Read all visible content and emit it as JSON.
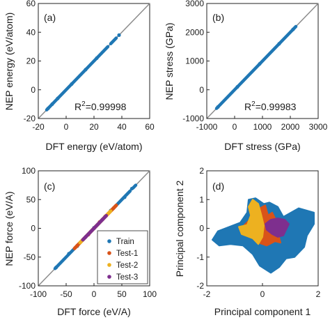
{
  "chart_data": [
    {
      "panel": "(a)",
      "type": "scatter",
      "xlabel": "DFT energy (eV/atom)",
      "ylabel": "NEP energy (eV/atom)",
      "xlim": [
        -20,
        60
      ],
      "ylim": [
        -20,
        60
      ],
      "xticks": [
        -20,
        0,
        20,
        40,
        60
      ],
      "yticks": [
        -20,
        0,
        20,
        40,
        60
      ],
      "annotation": {
        "base": "R",
        "sup": "2",
        "text": "=0.99998"
      },
      "identity_line": true,
      "series": [
        {
          "color": "#1f77b4",
          "segments": [
            [
              -14,
              30
            ],
            [
              32,
              36
            ]
          ],
          "points": [
            [
              -13,
              -13
            ],
            [
              -10,
              -10
            ],
            [
              -6,
              -6
            ],
            [
              4,
              4
            ],
            [
              14,
              14
            ],
            [
              22,
              22
            ],
            [
              38,
              38
            ]
          ]
        }
      ]
    },
    {
      "panel": "(b)",
      "type": "scatter",
      "xlabel": "DFT stress (GPa)",
      "ylabel": "NEP stress (GPa)",
      "xlim": [
        -1000,
        3000
      ],
      "ylim": [
        -1000,
        3000
      ],
      "xticks": [
        -1000,
        0,
        1000,
        2000,
        3000
      ],
      "yticks": [
        -1000,
        0,
        1000,
        2000,
        3000
      ],
      "annotation": {
        "base": "R",
        "sup": "2",
        "text": "=0.99983"
      },
      "identity_line": true,
      "series": [
        {
          "color": "#1f77b4",
          "segments": [
            [
              -650,
              2150
            ],
            [
              2150,
              2200
            ]
          ],
          "points": [
            [
              -600,
              -600
            ],
            [
              100,
              100
            ],
            [
              900,
              900
            ],
            [
              1600,
              1600
            ],
            [
              2100,
              2100
            ]
          ]
        }
      ]
    },
    {
      "panel": "(c)",
      "type": "scatter",
      "xlabel": "DFT force (eV/A)",
      "ylabel": "NEP force (eV/A)",
      "xlim": [
        -100,
        100
      ],
      "ylim": [
        -100,
        100
      ],
      "xticks": [
        -100,
        -50,
        0,
        50,
        100
      ],
      "yticks": [
        -100,
        -50,
        0,
        50,
        100
      ],
      "identity_line": true,
      "legend": {
        "position": "bottom-right"
      },
      "series": [
        {
          "name": "Train",
          "color": "#1f77b4",
          "segments": [
            [
              -70,
              65
            ],
            [
              70,
              75
            ]
          ],
          "points": [
            [
              -68,
              -68
            ],
            [
              -45,
              -44
            ],
            [
              -30,
              -31
            ],
            [
              0,
              1
            ],
            [
              30,
              31
            ],
            [
              55,
              54
            ],
            [
              68,
              69
            ]
          ]
        },
        {
          "name": "Test-1",
          "color": "#d95319",
          "segments": [
            [
              -35,
              40
            ]
          ],
          "points": [
            [
              -30,
              -30
            ],
            [
              -10,
              -11
            ],
            [
              10,
              11
            ],
            [
              35,
              35
            ]
          ]
        },
        {
          "name": "Test-2",
          "color": "#edb120",
          "segments": [
            [
              -25,
              30
            ]
          ],
          "points": [
            [
              -20,
              -20
            ],
            [
              0,
              0
            ],
            [
              20,
              21
            ]
          ]
        },
        {
          "name": "Test-3",
          "color": "#7e2f8e",
          "segments": [
            [
              -20,
              22
            ]
          ],
          "points": [
            [
              -15,
              -15
            ],
            [
              0,
              0
            ],
            [
              15,
              15
            ]
          ]
        }
      ]
    },
    {
      "panel": "(d)",
      "type": "scatter",
      "xlabel": "Principal component 1",
      "ylabel": "Principal component 2",
      "xlim": [
        -2,
        2
      ],
      "ylim": [
        -2,
        2
      ],
      "xticks": [
        -2,
        0,
        2
      ],
      "yticks": [
        -2,
        -1,
        0,
        1,
        2
      ],
      "regions": [
        {
          "color": "#1f77b4",
          "points": [
            [
              -1.8,
              -0.4
            ],
            [
              -1.6,
              -0.1
            ],
            [
              -1.2,
              0.05
            ],
            [
              -0.8,
              0.2
            ],
            [
              -0.55,
              0.55
            ],
            [
              -0.5,
              1.0
            ],
            [
              -0.25,
              1.05
            ],
            [
              0.05,
              0.85
            ],
            [
              0.25,
              0.9
            ],
            [
              0.55,
              0.75
            ],
            [
              0.75,
              0.4
            ],
            [
              1.3,
              0.7
            ],
            [
              1.85,
              0.55
            ],
            [
              1.85,
              0.15
            ],
            [
              1.6,
              -0.25
            ],
            [
              1.5,
              -0.65
            ],
            [
              1.15,
              -1.0
            ],
            [
              0.85,
              -1.05
            ],
            [
              0.6,
              -1.35
            ],
            [
              0.3,
              -1.55
            ],
            [
              -0.1,
              -1.3
            ],
            [
              -0.35,
              -0.9
            ],
            [
              -0.7,
              -0.6
            ],
            [
              -1.15,
              -0.55
            ],
            [
              -1.55,
              -0.6
            ]
          ]
        },
        {
          "color": "#d95319",
          "points": [
            [
              -0.65,
              0.12
            ],
            [
              -0.35,
              0.4
            ],
            [
              -0.1,
              0.7
            ],
            [
              0.1,
              0.8
            ],
            [
              0.2,
              0.45
            ],
            [
              0.35,
              0.55
            ],
            [
              0.45,
              0.35
            ],
            [
              0.75,
              0.3
            ],
            [
              0.7,
              0.05
            ],
            [
              0.55,
              -0.15
            ],
            [
              0.65,
              -0.5
            ],
            [
              0.45,
              -0.45
            ],
            [
              0.15,
              -0.6
            ],
            [
              -0.15,
              -0.5
            ],
            [
              -0.25,
              -0.25
            ],
            [
              -0.6,
              -0.15
            ]
          ]
        },
        {
          "color": "#edb120",
          "points": [
            [
              -0.55,
              0.12
            ],
            [
              -0.42,
              0.45
            ],
            [
              -0.5,
              0.75
            ],
            [
              -0.35,
              1.0
            ],
            [
              -0.15,
              0.85
            ],
            [
              -0.05,
              0.5
            ],
            [
              0.05,
              0.1
            ],
            [
              0.0,
              -0.3
            ],
            [
              -0.15,
              -0.55
            ],
            [
              -0.35,
              -0.35
            ],
            [
              -0.75,
              -0.2
            ],
            [
              -0.85,
              0.05
            ]
          ]
        },
        {
          "color": "#7e2f8e",
          "points": [
            [
              0.1,
              0.15
            ],
            [
              0.3,
              0.3
            ],
            [
              0.55,
              0.35
            ],
            [
              0.8,
              0.3
            ],
            [
              0.95,
              0.15
            ],
            [
              0.85,
              -0.05
            ],
            [
              0.75,
              -0.25
            ],
            [
              0.55,
              -0.3
            ],
            [
              0.35,
              -0.2
            ],
            [
              0.15,
              -0.05
            ]
          ]
        }
      ]
    }
  ]
}
